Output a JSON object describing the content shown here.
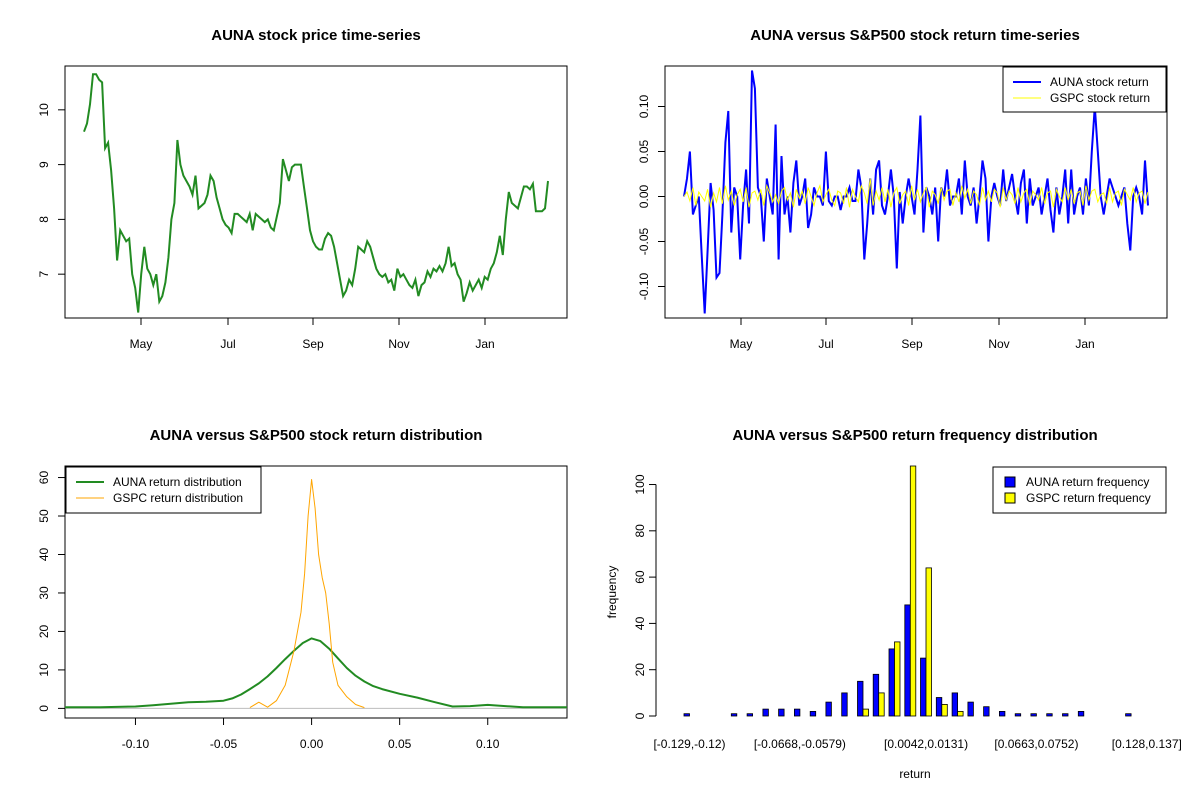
{
  "chart_data": [
    {
      "type": "line",
      "title": "AUNA stock price time-series",
      "xlabel": "",
      "ylabel": "",
      "x_tick_labels": [
        "May",
        "Jul",
        "Sep",
        "Nov",
        "Jan"
      ],
      "y_ticks": [
        7,
        8,
        9,
        10
      ],
      "ylim": [
        6.2,
        10.8
      ],
      "series": [
        {
          "color": "#228B22",
          "values": [
            9.6,
            9.75,
            10.1,
            10.65,
            10.65,
            10.55,
            10.5,
            9.3,
            9.4,
            8.9,
            8.2,
            7.25,
            7.8,
            7.7,
            7.6,
            7.65,
            7.0,
            6.75,
            6.3,
            7.0,
            7.5,
            7.1,
            7.0,
            6.8,
            7.0,
            6.5,
            6.6,
            6.85,
            7.3,
            8.0,
            8.3,
            9.45,
            9.0,
            8.8,
            8.7,
            8.6,
            8.45,
            8.8,
            8.2,
            8.25,
            8.3,
            8.45,
            8.8,
            8.7,
            8.4,
            8.2,
            8.0,
            7.9,
            7.85,
            7.75,
            8.1,
            8.1,
            8.05,
            8.0,
            7.95,
            8.1,
            7.8,
            8.1,
            8.05,
            8.0,
            7.95,
            8.0,
            7.85,
            7.8,
            8.05,
            8.3,
            9.1,
            8.9,
            8.7,
            8.95,
            9.0,
            9.0,
            9.0,
            8.6,
            8.2,
            7.8,
            7.6,
            7.5,
            7.45,
            7.45,
            7.65,
            7.75,
            7.7,
            7.5,
            7.2,
            6.9,
            6.6,
            6.7,
            6.9,
            6.8,
            7.1,
            7.5,
            7.45,
            7.4,
            7.6,
            7.5,
            7.3,
            7.1,
            7.0,
            6.95,
            7.0,
            6.85,
            6.9,
            6.7,
            7.1,
            6.95,
            7.0,
            6.9,
            6.8,
            6.75,
            6.9,
            6.6,
            6.8,
            6.85,
            7.05,
            6.95,
            7.1,
            7.05,
            7.15,
            7.05,
            7.2,
            7.5,
            7.15,
            7.2,
            7.0,
            6.9,
            6.5,
            6.65,
            6.85,
            6.7,
            6.8,
            6.9,
            6.75,
            6.95,
            6.9,
            7.1,
            7.2,
            7.4,
            7.7,
            7.35,
            8.0,
            8.5,
            8.3,
            8.25,
            8.2,
            8.4,
            8.6,
            8.6,
            8.55,
            8.65,
            8.15,
            8.15,
            8.15,
            8.2,
            8.7
          ]
        }
      ]
    },
    {
      "type": "line",
      "title": "AUNA versus S&P500 stock return time-series",
      "xlabel": "",
      "ylabel": "",
      "x_tick_labels": [
        "May",
        "Jul",
        "Sep",
        "Nov",
        "Jan"
      ],
      "y_ticks": [
        -0.1,
        -0.05,
        0.0,
        0.05,
        0.1
      ],
      "y_tick_labels": [
        "-0.10",
        "-0.05",
        "0.00",
        "0.05",
        "0.10"
      ],
      "ylim": [
        -0.135,
        0.145
      ],
      "legend": {
        "position": "top-right"
      },
      "series": [
        {
          "name": "AUNA stock return",
          "color": "#0000FF",
          "values": [
            0.0,
            0.02,
            0.05,
            -0.02,
            -0.01,
            0.0,
            -0.065,
            -0.13,
            -0.06,
            0.015,
            -0.015,
            -0.09,
            -0.085,
            -0.02,
            0.06,
            0.095,
            -0.04,
            0.01,
            0.0,
            -0.07,
            -0.01,
            0.03,
            -0.03,
            0.14,
            0.12,
            0.01,
            0.0,
            -0.05,
            0.02,
            0.0,
            -0.02,
            0.08,
            -0.07,
            0.045,
            -0.02,
            0.0,
            -0.04,
            0.015,
            0.04,
            -0.01,
            0.0,
            0.02,
            -0.035,
            -0.02,
            0.01,
            0.0,
            0.0,
            -0.01,
            0.05,
            -0.005,
            -0.01,
            0.0,
            0.0,
            -0.015,
            0.0,
            0.0,
            0.01,
            -0.005,
            -0.005,
            0.03,
            0.01,
            -0.07,
            -0.03,
            0.02,
            -0.02,
            0.03,
            0.04,
            -0.01,
            -0.02,
            0.0,
            0.03,
            0.0,
            -0.08,
            0.005,
            -0.03,
            0.0,
            0.02,
            0.0,
            -0.02,
            0.03,
            0.09,
            -0.04,
            0.01,
            0.0,
            -0.02,
            0.01,
            -0.05,
            0.01,
            0.0,
            0.03,
            -0.01,
            0.0,
            0.0,
            0.02,
            -0.02,
            0.04,
            0.0,
            -0.01,
            0.01,
            -0.03,
            0.0,
            0.04,
            0.02,
            -0.05,
            0.0,
            0.015,
            0.0,
            -0.01,
            0.03,
            -0.005,
            0.01,
            0.025,
            0.0,
            -0.02,
            0.015,
            0.03,
            -0.03,
            0.02,
            -0.01,
            0.0,
            0.01,
            -0.02,
            0.0,
            0.02,
            -0.015,
            -0.04,
            0.01,
            -0.02,
            0.0,
            0.03,
            -0.03,
            0.03,
            -0.02,
            0.0,
            0.01,
            -0.02,
            0.02,
            -0.01,
            0.05,
            0.1,
            0.05,
            0.0,
            -0.02,
            0.0,
            0.02,
            0.01,
            0.0,
            -0.01,
            0.0,
            0.01,
            -0.03,
            -0.06,
            0.0,
            0.01,
            0.0,
            -0.02,
            0.04,
            -0.01
          ]
        },
        {
          "name": "GSPC stock return",
          "color": "#FFFF00",
          "values": [
            0.0,
            0.005,
            -0.005,
            0.01,
            -0.01,
            0.005,
            0.0,
            -0.005,
            0.008,
            -0.012,
            0.004,
            -0.006,
            0.01,
            -0.008,
            0.012,
            -0.004,
            0.006,
            -0.01,
            0.002,
            0.008,
            -0.006,
            0.01,
            -0.012,
            0.004,
            0.006,
            -0.004,
            0.008,
            -0.01,
            0.012,
            0.004,
            -0.006,
            0.002,
            -0.008,
            0.006,
            0.01,
            -0.004,
            0.004,
            -0.012,
            0.008,
            -0.002,
            0.006,
            -0.008,
            0.01,
            0.0,
            -0.01,
            0.004,
            0.012,
            -0.006,
            0.002,
            0.008,
            -0.004,
            -0.01,
            0.006,
            0.004,
            -0.008,
            0.01,
            -0.012,
            0.008,
            0.0,
            -0.006,
            0.012,
            0.004,
            -0.008,
            0.02,
            -0.01,
            0.006,
            -0.004,
            0.01,
            -0.006,
            0.008,
            -0.012,
            0.004,
            0.01,
            -0.008,
            0.002,
            0.006,
            -0.01,
            0.012,
            -0.004,
            0.008,
            -0.006,
            0.004,
            0.01,
            -0.012,
            0.006,
            0.002,
            -0.008,
            0.01,
            -0.004,
            0.006,
            0.008,
            -0.01,
            0.004,
            -0.006,
            0.012,
            -0.002,
            0.008,
            -0.008,
            0.006,
            0.002,
            -0.01,
            0.01,
            -0.004,
            0.006,
            -0.006,
            0.008,
            0.004,
            -0.012,
            0.01,
            -0.004,
            0.006,
            0.002,
            -0.008,
            0.01,
            -0.006,
            0.004,
            0.008,
            -0.01,
            0.006,
            0.002,
            -0.004,
            0.01,
            -0.008,
            0.004,
            0.006,
            -0.012,
            0.008,
            0.0,
            -0.006,
            0.01,
            -0.004,
            0.008,
            -0.008,
            0.004,
            0.006,
            -0.01,
            0.012,
            -0.004,
            0.006,
            0.008,
            -0.006,
            0.002,
            0.004,
            -0.008,
            0.01,
            -0.006,
            0.004,
            0.006,
            -0.01,
            0.008,
            0.002,
            -0.004,
            0.01,
            -0.006,
            0.004,
            0.006,
            -0.008,
            0.005
          ]
        }
      ]
    },
    {
      "type": "line",
      "title": "AUNA versus S&P500 stock return distribution",
      "xlabel": "",
      "ylabel": "",
      "x_ticks": [
        -0.1,
        -0.05,
        0.0,
        0.05,
        0.1
      ],
      "x_tick_labels": [
        "-0.10",
        "-0.05",
        "0.00",
        "0.05",
        "0.10"
      ],
      "y_ticks": [
        0,
        10,
        20,
        30,
        40,
        50,
        60
      ],
      "xlim": [
        -0.14,
        0.145
      ],
      "ylim": [
        -2.5,
        63
      ],
      "legend": {
        "position": "top-left"
      },
      "series": [
        {
          "name": "AUNA return distribution",
          "color": "#228B22",
          "x": [
            -0.14,
            -0.12,
            -0.1,
            -0.09,
            -0.08,
            -0.07,
            -0.06,
            -0.05,
            -0.045,
            -0.04,
            -0.035,
            -0.03,
            -0.025,
            -0.02,
            -0.015,
            -0.01,
            -0.005,
            0.0,
            0.005,
            0.01,
            0.015,
            0.02,
            0.025,
            0.03,
            0.035,
            0.04,
            0.05,
            0.06,
            0.07,
            0.08,
            0.09,
            0.1,
            0.11,
            0.12,
            0.13,
            0.145
          ],
          "values": [
            0.3,
            0.3,
            0.5,
            0.8,
            1.2,
            1.6,
            1.7,
            2.0,
            2.6,
            3.6,
            5.0,
            6.5,
            8.3,
            10.5,
            12.8,
            15.0,
            17.0,
            18.2,
            17.5,
            15.5,
            13.0,
            10.5,
            8.5,
            7.0,
            5.8,
            5.0,
            3.8,
            2.8,
            1.6,
            0.5,
            0.6,
            0.9,
            0.6,
            0.3,
            0.3,
            0.3
          ]
        },
        {
          "name": "GSPC return distribution",
          "color": "#FFA500",
          "x": [
            -0.035,
            -0.03,
            -0.025,
            -0.02,
            -0.015,
            -0.01,
            -0.006,
            -0.004,
            -0.002,
            0.0,
            0.002,
            0.004,
            0.006,
            0.008,
            0.01,
            0.012,
            0.015,
            0.02,
            0.025,
            0.03
          ],
          "values": [
            0.2,
            1.6,
            0.3,
            2.0,
            6.0,
            15.0,
            25.0,
            35.0,
            50.0,
            59.5,
            52.0,
            40.0,
            34.0,
            30.0,
            22.0,
            12.0,
            6.0,
            3.0,
            1.0,
            0.2
          ]
        }
      ]
    },
    {
      "type": "bar",
      "title": "AUNA versus S&P500 return frequency distribution",
      "xlabel": "return",
      "ylabel": "frequency",
      "y_ticks": [
        0,
        20,
        40,
        60,
        80,
        100
      ],
      "ylim": [
        0,
        108
      ],
      "legend": {
        "position": "top-right"
      },
      "category_tick_labels": [
        "[-0.129,-0.12)",
        "[-0.0668,-0.0579)",
        "[0.0042,0.0131)",
        "[0.0663,0.0752)",
        "[0.128,0.137]"
      ],
      "category_tick_indices": [
        0,
        7,
        15,
        22,
        29
      ],
      "series": [
        {
          "name": "AUNA return frequency",
          "color": "#0000FF",
          "values": [
            1,
            0,
            0,
            1,
            1,
            3,
            3,
            3,
            2,
            6,
            10,
            15,
            18,
            29,
            48,
            25,
            8,
            10,
            6,
            4,
            2,
            1,
            1,
            1,
            1,
            2,
            0,
            0,
            1,
            0
          ]
        },
        {
          "name": "GSPC return frequency",
          "color": "#FFFF00",
          "values": [
            0,
            0,
            0,
            0,
            0,
            0,
            0,
            0,
            0,
            0,
            0,
            3,
            10,
            32,
            108,
            64,
            5,
            2,
            0,
            0,
            0,
            0,
            0,
            0,
            0,
            0,
            0,
            0,
            0,
            0
          ]
        }
      ]
    }
  ]
}
